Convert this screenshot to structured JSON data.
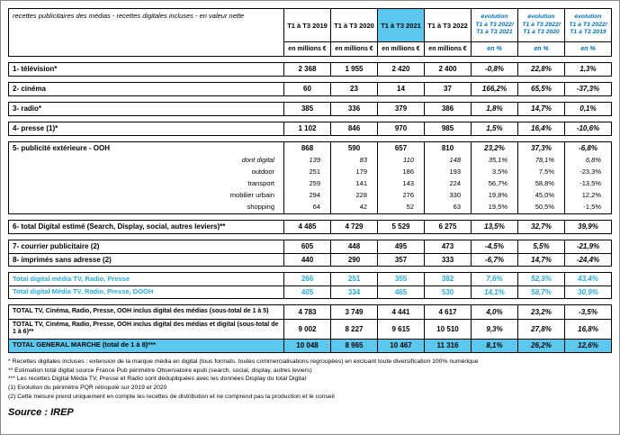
{
  "colors": {
    "highlight": "#5bc8f0",
    "accent_text": "#29abe2",
    "evolution_header_blue": "#0070c0"
  },
  "header": {
    "title": "recettes publicitaires des médias - recettes digitales incluses - en valeur nette",
    "periods": [
      {
        "label": "T1 à T3 2019",
        "unit": "en millions €",
        "highlight": false
      },
      {
        "label": "T1 à T3 2020",
        "unit": "en millions €",
        "highlight": false
      },
      {
        "label": "T1 à T3 2021",
        "unit": "en millions €",
        "highlight": true
      },
      {
        "label": "T1 à T3 2022",
        "unit": "en millions €",
        "highlight": false
      }
    ],
    "evolutions": [
      {
        "label": "évolution\nT1 à T3 2022/\nT1 à T3 2021",
        "unit": "en %"
      },
      {
        "label": "évolution\nT1 à T3 2022/\nT1 à T3 2020",
        "unit": "en %"
      },
      {
        "label": "évolution\nT1 à T3 2022/\nT1 à T3 2019",
        "unit": "en %"
      }
    ]
  },
  "table": {
    "groups": [
      {
        "separators": false,
        "rows": [
          {
            "label": "1- télévision*",
            "style": "main",
            "values": [
              "2 368",
              "1 955",
              "2 420",
              "2 400"
            ],
            "evos": [
              "-0,8%",
              "22,8%",
              "1,3%"
            ]
          }
        ]
      },
      {
        "separators": false,
        "rows": [
          {
            "label": "2- cinéma",
            "style": "main",
            "values": [
              "60",
              "23",
              "14",
              "37"
            ],
            "evos": [
              "166,2%",
              "65,5%",
              "-37,3%"
            ]
          }
        ]
      },
      {
        "separators": false,
        "rows": [
          {
            "label": "3- radio*",
            "style": "main",
            "values": [
              "385",
              "336",
              "379",
              "386"
            ],
            "evos": [
              "1,8%",
              "14,7%",
              "0,1%"
            ]
          }
        ]
      },
      {
        "separators": false,
        "rows": [
          {
            "label": "4- presse (1)*",
            "style": "main",
            "values": [
              "1 102",
              "846",
              "970",
              "985"
            ],
            "evos": [
              "1,5%",
              "16,4%",
              "-10,6%"
            ]
          }
        ]
      },
      {
        "separators": false,
        "rows": [
          {
            "label": "5- publicité extérieure - OOH",
            "style": "main",
            "values": [
              "868",
              "590",
              "657",
              "810"
            ],
            "evos": [
              "23,2%",
              "37,3%",
              "-6,8%"
            ]
          },
          {
            "label": "dont digital",
            "style": "sub-italic",
            "values": [
              "139",
              "83",
              "110",
              "148"
            ],
            "evos": [
              "35,1%",
              "78,1%",
              "6,8%"
            ]
          },
          {
            "label": "outdoor",
            "style": "sub",
            "values": [
              "251",
              "179",
              "186",
              "193"
            ],
            "evos": [
              "3,5%",
              "7,5%",
              "-23,3%"
            ]
          },
          {
            "label": "transport",
            "style": "sub",
            "values": [
              "259",
              "141",
              "143",
              "224"
            ],
            "evos": [
              "56,7%",
              "58,8%",
              "-13,5%"
            ]
          },
          {
            "label": "mobilier urbain",
            "style": "sub",
            "values": [
              "294",
              "228",
              "276",
              "330"
            ],
            "evos": [
              "19,8%",
              "45,0%",
              "12,2%"
            ]
          },
          {
            "label": "shopping",
            "style": "sub",
            "values": [
              "64",
              "42",
              "52",
              "63"
            ],
            "evos": [
              "19,5%",
              "50,5%",
              "-1,5%"
            ]
          }
        ]
      },
      {
        "separators": false,
        "rows": [
          {
            "label": "6- total Digital estimé (Search, Display, social, autres leviers)**",
            "style": "main",
            "values": [
              "4 485",
              "4 729",
              "5 529",
              "6 275"
            ],
            "evos": [
              "13,5%",
              "32,7%",
              "39,9%"
            ]
          }
        ]
      },
      {
        "separators": true,
        "rows": [
          {
            "label": "7- courrier publicitaire (2)",
            "style": "main",
            "values": [
              "605",
              "448",
              "495",
              "473"
            ],
            "evos": [
              "-4,5%",
              "5,5%",
              "-21,9%"
            ]
          },
          {
            "label": "8- imprimés sans adresse (2)",
            "style": "main",
            "values": [
              "440",
              "290",
              "357",
              "333"
            ],
            "evos": [
              "-6,7%",
              "14,7%",
              "-24,4%"
            ]
          }
        ]
      },
      {
        "separators": true,
        "rows": [
          {
            "label": "Total digital média TV, Radio, Presse",
            "style": "cyan",
            "values": [
              "266",
              "251",
              "355",
              "382"
            ],
            "evos": [
              "7,6%",
              "52,3%",
              "43,4%"
            ]
          },
          {
            "label": "Total digital Média TV, Radio, Presse, DOOH",
            "style": "cyan",
            "values": [
              "405",
              "334",
              "465",
              "530"
            ],
            "evos": [
              "14,1%",
              "58,7%",
              "30,9%"
            ]
          }
        ]
      },
      {
        "separators": true,
        "rows": [
          {
            "label": "TOTAL TV, Cinéma, Radio, Presse, OOH inclus digital des médias (sous-total de 1 à 5)",
            "style": "total",
            "values": [
              "4 783",
              "3 749",
              "4 441",
              "4 617"
            ],
            "evos": [
              "4,0%",
              "23,2%",
              "-3,5%"
            ]
          },
          {
            "label": "TOTAL TV, Cinéma, Radio, Presse, OOH inclus digital des médias et digital (sous-total de 1 à 6)**",
            "style": "total",
            "values": [
              "9 002",
              "8 227",
              "9 615",
              "10 510"
            ],
            "evos": [
              "9,3%",
              "27,8%",
              "16,8%"
            ]
          },
          {
            "label": "TOTAL GENERAL MARCHE (total de 1 à 8)***",
            "style": "grand",
            "values": [
              "10 048",
              "8 965",
              "10 467",
              "11 316"
            ],
            "evos": [
              "8,1%",
              "26,2%",
              "12,6%"
            ]
          }
        ]
      }
    ]
  },
  "footnotes": [
    "* Recettes digitales incluses : extension de la marque média en digital (tous formats, toutes commercialisations regroupées) en excluant toute diversification 100% numérique",
    "** Estimation total digital source France Pub périmètre Observatoire epub (search, social, display, autres leviers)",
    "*** Les recettes Digital Média TV, Presse et Radio sont dédupliquées avec les données Display du total Digital",
    "(1) Evolution du périmètre PQR rétropolé sur 2019 et 2020",
    "(2) Cette mesure prend uniquement en compte les recettes de distribution et ne comprend pas la production et le conseil"
  ],
  "source": "Source : IREP"
}
